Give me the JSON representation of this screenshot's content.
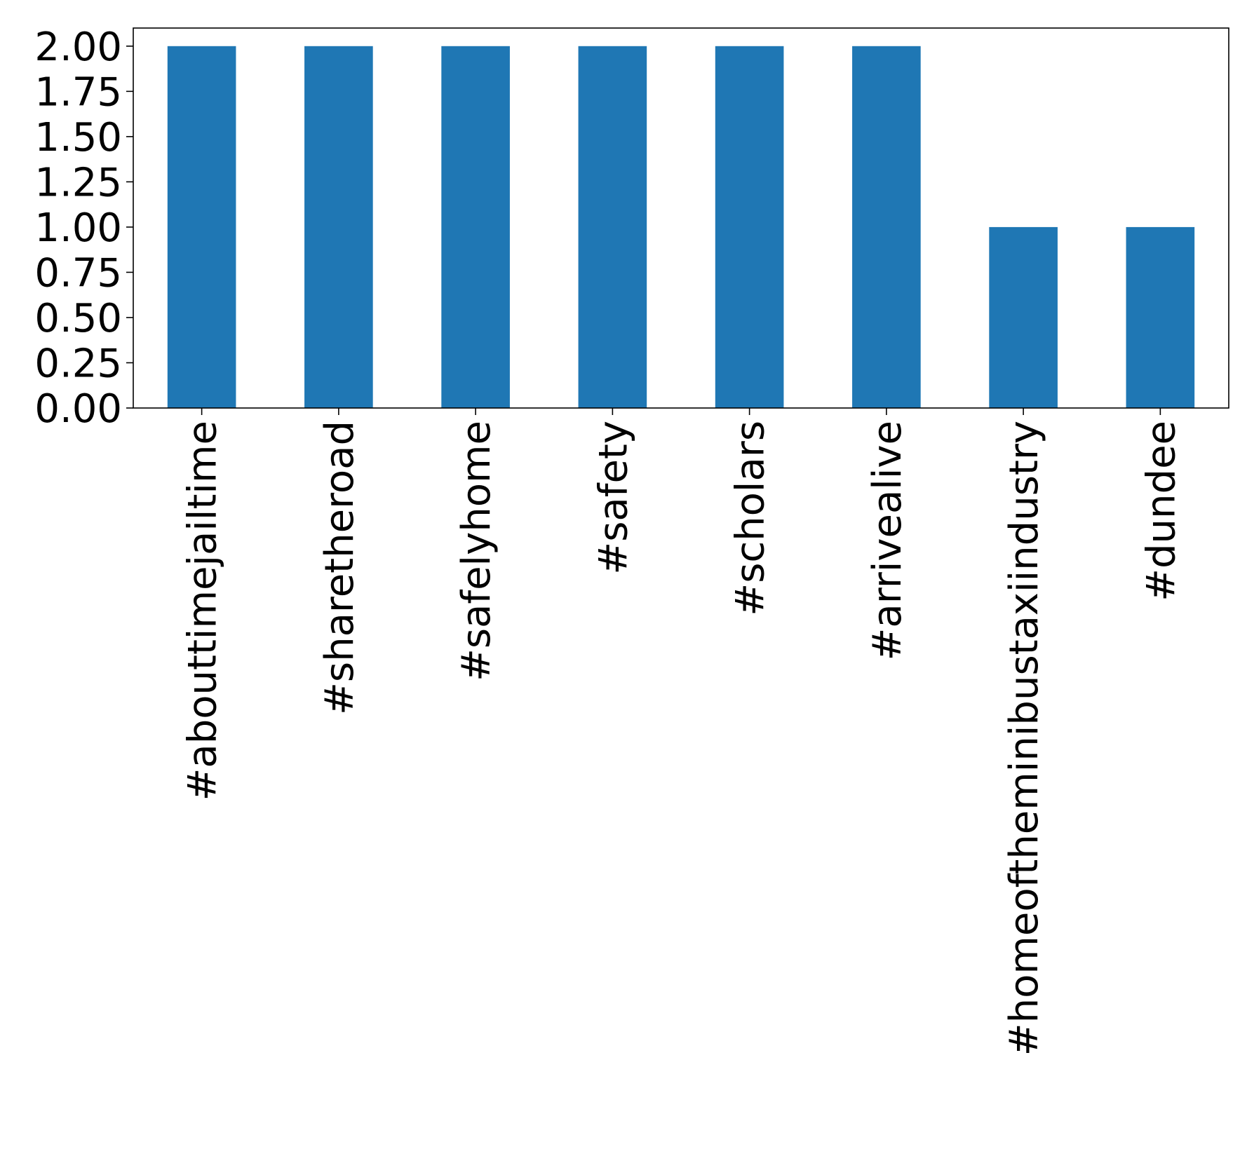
{
  "chart_data": {
    "type": "bar",
    "title": "",
    "xlabel": "",
    "ylabel": "",
    "categories": [
      "#abouttimejailtime",
      "#sharetheroad",
      "#safelyhome",
      "#safety",
      "#scholars",
      "#arrivealive",
      "#homeoftheminibustaxiindustry",
      "#dundee"
    ],
    "values": [
      2,
      2,
      2,
      2,
      2,
      2,
      1,
      1
    ],
    "ylim": [
      0,
      2.1
    ],
    "yticks": [
      "0.00",
      "0.25",
      "0.50",
      "0.75",
      "1.00",
      "1.25",
      "1.50",
      "1.75",
      "2.00"
    ],
    "bar_color": "#1f77b4",
    "grid": false,
    "legend": "none",
    "xtick_rotation": "vertical"
  }
}
